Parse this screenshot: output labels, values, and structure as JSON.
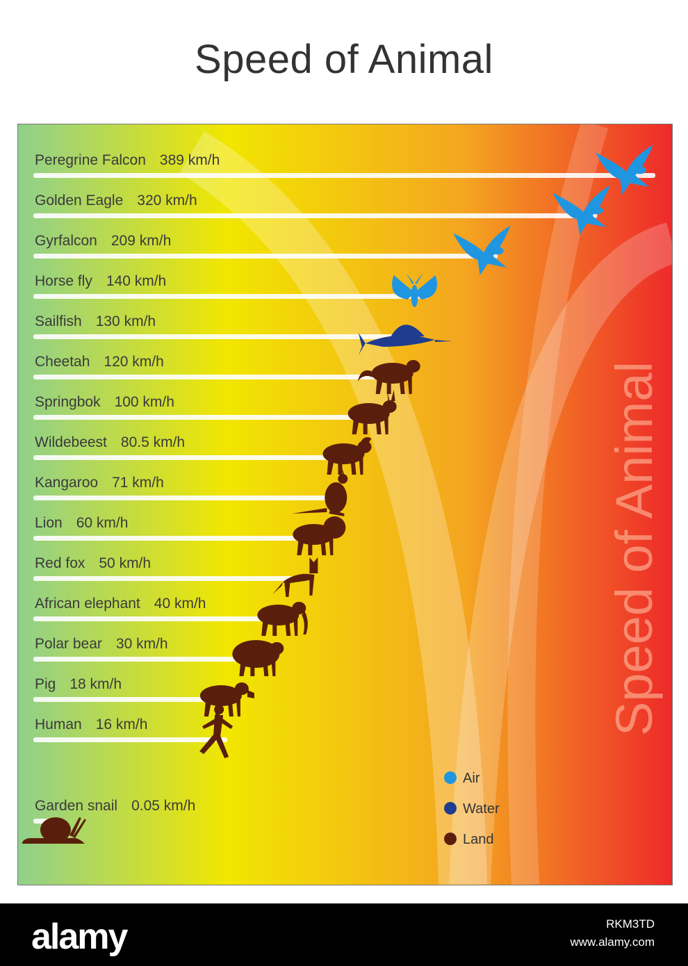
{
  "chart_data": {
    "type": "bar",
    "title": "Speed of Animal",
    "side_title": "Speed of Animal",
    "xlim": [
      0,
      400
    ],
    "categories": [
      "Peregrine Falcon",
      "Golden Eagle",
      "Gyrfalcon",
      "Horse fly",
      "Sailfish",
      "Cheetah",
      "Springbok",
      "Wildebeest",
      "Kangaroo",
      "Lion",
      "Red fox",
      "African elephant",
      "Polar bear",
      "Pig",
      "Human",
      "Garden snail"
    ],
    "values": [
      389,
      320,
      209,
      140,
      130,
      120,
      100,
      80.5,
      71,
      60,
      50,
      40,
      30,
      18,
      16,
      0.05
    ],
    "value_labels": [
      "389 km/h",
      "320 km/h",
      "209 km/h",
      "140 km/h",
      "130 km/h",
      "120 km/h",
      "100 km/h",
      "80.5 km/h",
      "71 km/h",
      "60 km/h",
      "50 km/h",
      "40 km/h",
      "30 km/h",
      "18 km/h",
      "16 km/h",
      "0.05 km/h"
    ],
    "groups": [
      "air",
      "air",
      "air",
      "air",
      "water",
      "land",
      "land",
      "land",
      "land",
      "land",
      "land",
      "land",
      "land",
      "land",
      "land",
      "land"
    ],
    "icons": [
      "falcon-icon",
      "eagle-icon",
      "gyrfalcon-icon",
      "horse-fly-icon",
      "sailfish-icon",
      "cheetah-icon",
      "springbok-icon",
      "wildebeest-icon",
      "kangaroo-icon",
      "lion-icon",
      "red-fox-icon",
      "elephant-icon",
      "polar-bear-icon",
      "pig-icon",
      "human-icon",
      "snail-icon"
    ],
    "legend": {
      "position": "bottom-right",
      "items": [
        {
          "key": "air",
          "label": "Air",
          "color": "#2196e0"
        },
        {
          "key": "water",
          "label": "Water",
          "color": "#1f3c8f"
        },
        {
          "key": "land",
          "label": "Land",
          "color": "#5a1f0c"
        }
      ]
    },
    "background_gradient": [
      "#8fd08c",
      "#f2e600",
      "#f4a620",
      "#ee2a2a"
    ]
  },
  "watermark": {
    "logo": "alamy",
    "image_id": "RKM3TD",
    "url": "www.alamy.com"
  }
}
